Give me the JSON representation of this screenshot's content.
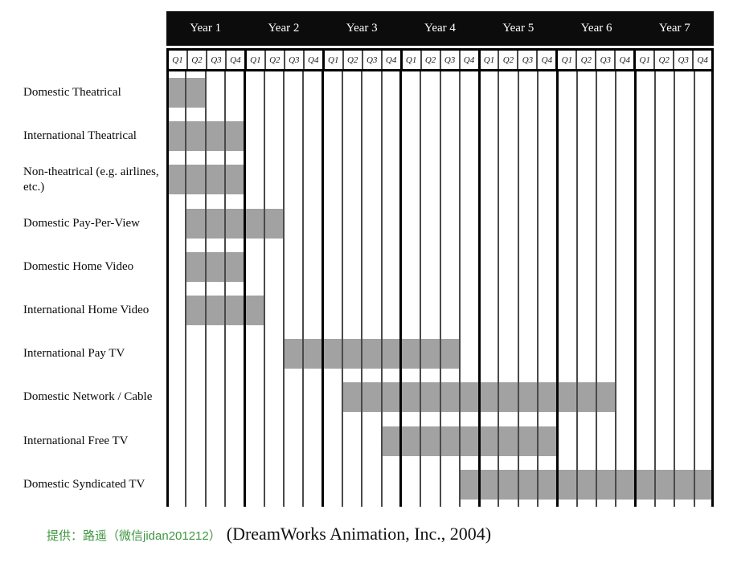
{
  "chart_data": {
    "type": "gantt",
    "orientation": "horizontal",
    "unit": "quarter",
    "years": [
      "Year 1",
      "Year 2",
      "Year 3",
      "Year 4",
      "Year 5",
      "Year 6",
      "Year 7"
    ],
    "quarters_per_year": [
      "Q1",
      "Q2",
      "Q3",
      "Q4"
    ],
    "total_quarters": 28,
    "bar_color": "#a2a2a2",
    "header_bg": "#0c0c0c",
    "header_text_color": "#ffffff",
    "rows": [
      {
        "label": "Domestic Theatrical",
        "start": 0,
        "span": 2
      },
      {
        "label": "International Theatrical",
        "start": 0,
        "span": 4
      },
      {
        "label": "Non-theatrical (e.g. airlines, etc.)",
        "start": 0,
        "span": 4
      },
      {
        "label": "Domestic Pay-Per-View",
        "start": 1,
        "span": 5
      },
      {
        "label": "Domestic Home Video",
        "start": 1,
        "span": 3
      },
      {
        "label": "International Home Video",
        "start": 1,
        "span": 4
      },
      {
        "label": "International Pay TV",
        "start": 6,
        "span": 9
      },
      {
        "label": "Domestic Network / Cable",
        "start": 9,
        "span": 14
      },
      {
        "label": "International Free TV",
        "start": 11,
        "span": 9
      },
      {
        "label": "Domestic Syndicated TV",
        "start": 15,
        "span": 13
      }
    ]
  },
  "footer": {
    "credit": "提供：路遥（微信jidan201212）",
    "source": "(DreamWorks Animation, Inc., 2004)"
  }
}
